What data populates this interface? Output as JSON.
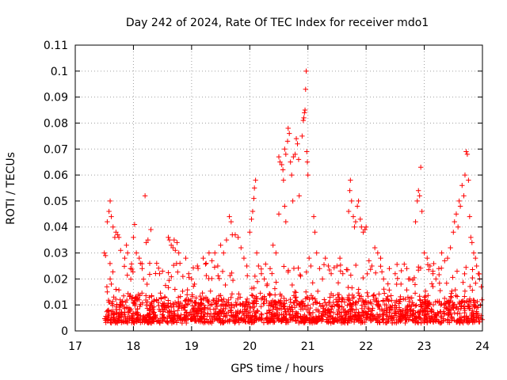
{
  "chart_data": {
    "type": "scatter",
    "title": "Day 242 of 2024, Rate Of TEC Index for receiver mdo1",
    "xlabel": "GPS time / hours",
    "ylabel": "ROTI / TECUs",
    "xlim": [
      17,
      24
    ],
    "ylim": [
      0,
      0.11
    ],
    "xticks": [
      17,
      18,
      19,
      20,
      21,
      22,
      23,
      24
    ],
    "xtick_labels": [
      "17",
      "18",
      "19",
      "20",
      "21",
      "22",
      "23",
      "24"
    ],
    "yticks": [
      0,
      0.01,
      0.02,
      0.03,
      0.04,
      0.05,
      0.06,
      0.07,
      0.08,
      0.09,
      0.1,
      0.11
    ],
    "ytick_labels": [
      "0",
      "0.01",
      "0.02",
      "0.03",
      "0.04",
      "0.05",
      "0.06",
      "0.07",
      "0.08",
      "0.09",
      "0.1",
      "0.11"
    ],
    "grid": true,
    "marker": "+",
    "series": [
      {
        "name": "ROTI",
        "color": "#ff0000",
        "points": [
          [
            17.5,
            0.03
          ],
          [
            17.52,
            0.029
          ],
          [
            17.55,
            0.042
          ],
          [
            17.58,
            0.046
          ],
          [
            17.6,
            0.05
          ],
          [
            17.62,
            0.044
          ],
          [
            17.65,
            0.04
          ],
          [
            17.68,
            0.036
          ],
          [
            17.7,
            0.038
          ],
          [
            17.73,
            0.037
          ],
          [
            17.75,
            0.036
          ],
          [
            17.78,
            0.031
          ],
          [
            17.6,
            0.02
          ],
          [
            17.62,
            0.018
          ],
          [
            17.55,
            0.015
          ],
          [
            17.7,
            0.016
          ],
          [
            17.85,
            0.028
          ],
          [
            17.88,
            0.033
          ],
          [
            17.9,
            0.03
          ],
          [
            17.95,
            0.024
          ],
          [
            18.0,
            0.036
          ],
          [
            18.02,
            0.041
          ],
          [
            18.05,
            0.03
          ],
          [
            18.1,
            0.028
          ],
          [
            18.12,
            0.026
          ],
          [
            18.15,
            0.024
          ],
          [
            18.2,
            0.052
          ],
          [
            18.22,
            0.034
          ],
          [
            18.25,
            0.035
          ],
          [
            18.28,
            0.026
          ],
          [
            18.3,
            0.039
          ],
          [
            18.4,
            0.026
          ],
          [
            18.45,
            0.022
          ],
          [
            18.5,
            0.023
          ],
          [
            18.6,
            0.036
          ],
          [
            18.62,
            0.035
          ],
          [
            18.65,
            0.033
          ],
          [
            18.68,
            0.032
          ],
          [
            18.7,
            0.035
          ],
          [
            18.72,
            0.031
          ],
          [
            18.75,
            0.034
          ],
          [
            18.78,
            0.03
          ],
          [
            18.8,
            0.026
          ],
          [
            18.85,
            0.021
          ],
          [
            18.9,
            0.028
          ],
          [
            18.95,
            0.022
          ],
          [
            19.0,
            0.02
          ],
          [
            19.05,
            0.018
          ],
          [
            19.1,
            0.025
          ],
          [
            19.2,
            0.028
          ],
          [
            19.25,
            0.026
          ],
          [
            19.3,
            0.03
          ],
          [
            19.35,
            0.027
          ],
          [
            19.4,
            0.03
          ],
          [
            19.45,
            0.025
          ],
          [
            19.5,
            0.033
          ],
          [
            19.55,
            0.03
          ],
          [
            19.6,
            0.035
          ],
          [
            19.65,
            0.044
          ],
          [
            19.68,
            0.042
          ],
          [
            19.7,
            0.037
          ],
          [
            19.75,
            0.037
          ],
          [
            19.8,
            0.036
          ],
          [
            19.85,
            0.032
          ],
          [
            19.9,
            0.028
          ],
          [
            19.95,
            0.025
          ],
          [
            20.0,
            0.038
          ],
          [
            20.03,
            0.043
          ],
          [
            20.05,
            0.046
          ],
          [
            20.07,
            0.051
          ],
          [
            20.08,
            0.055
          ],
          [
            20.1,
            0.058
          ],
          [
            20.12,
            0.03
          ],
          [
            20.15,
            0.025
          ],
          [
            20.2,
            0.022
          ],
          [
            20.25,
            0.02
          ],
          [
            20.3,
            0.018
          ],
          [
            20.35,
            0.024
          ],
          [
            20.4,
            0.033
          ],
          [
            20.45,
            0.03
          ],
          [
            20.5,
            0.045
          ],
          [
            20.5,
            0.067
          ],
          [
            20.52,
            0.065
          ],
          [
            20.55,
            0.064
          ],
          [
            20.57,
            0.062
          ],
          [
            20.58,
            0.058
          ],
          [
            20.6,
            0.07
          ],
          [
            20.62,
            0.068
          ],
          [
            20.65,
            0.073
          ],
          [
            20.66,
            0.078
          ],
          [
            20.68,
            0.076
          ],
          [
            20.7,
            0.065
          ],
          [
            20.72,
            0.06
          ],
          [
            20.74,
            0.05
          ],
          [
            20.75,
            0.067
          ],
          [
            20.78,
            0.068
          ],
          [
            20.8,
            0.074
          ],
          [
            20.82,
            0.072
          ],
          [
            20.84,
            0.066
          ],
          [
            20.85,
            0.052
          ],
          [
            20.6,
            0.048
          ],
          [
            20.62,
            0.042
          ],
          [
            20.9,
            0.075
          ],
          [
            20.92,
            0.081
          ],
          [
            20.93,
            0.082
          ],
          [
            20.94,
            0.084
          ],
          [
            20.95,
            0.085
          ],
          [
            20.96,
            0.093
          ],
          [
            20.97,
            0.1
          ],
          [
            20.98,
            0.069
          ],
          [
            20.99,
            0.065
          ],
          [
            21.0,
            0.06
          ],
          [
            21.02,
            0.028
          ],
          [
            21.05,
            0.025
          ],
          [
            21.1,
            0.044
          ],
          [
            21.12,
            0.038
          ],
          [
            21.15,
            0.03
          ],
          [
            21.2,
            0.024
          ],
          [
            21.25,
            0.02
          ],
          [
            21.3,
            0.028
          ],
          [
            21.35,
            0.025
          ],
          [
            21.4,
            0.022
          ],
          [
            21.5,
            0.025
          ],
          [
            21.55,
            0.028
          ],
          [
            21.6,
            0.022
          ],
          [
            21.7,
            0.046
          ],
          [
            21.72,
            0.054
          ],
          [
            21.73,
            0.058
          ],
          [
            21.75,
            0.05
          ],
          [
            21.78,
            0.044
          ],
          [
            21.8,
            0.04
          ],
          [
            21.82,
            0.042
          ],
          [
            21.85,
            0.048
          ],
          [
            21.87,
            0.05
          ],
          [
            21.9,
            0.043
          ],
          [
            21.92,
            0.04
          ],
          [
            21.95,
            0.038
          ],
          [
            21.98,
            0.039
          ],
          [
            22.0,
            0.04
          ],
          [
            22.05,
            0.027
          ],
          [
            22.1,
            0.025
          ],
          [
            22.15,
            0.032
          ],
          [
            22.2,
            0.03
          ],
          [
            22.25,
            0.028
          ],
          [
            22.3,
            0.02
          ],
          [
            22.4,
            0.024
          ],
          [
            22.5,
            0.022
          ],
          [
            22.6,
            0.018
          ],
          [
            22.7,
            0.024
          ],
          [
            22.75,
            0.02
          ],
          [
            22.85,
            0.042
          ],
          [
            22.88,
            0.05
          ],
          [
            22.9,
            0.054
          ],
          [
            22.92,
            0.052
          ],
          [
            22.94,
            0.063
          ],
          [
            22.96,
            0.046
          ],
          [
            23.0,
            0.03
          ],
          [
            23.05,
            0.028
          ],
          [
            23.1,
            0.025
          ],
          [
            23.15,
            0.022
          ],
          [
            23.2,
            0.02
          ],
          [
            23.25,
            0.024
          ],
          [
            23.3,
            0.03
          ],
          [
            23.35,
            0.027
          ],
          [
            23.4,
            0.028
          ],
          [
            23.45,
            0.032
          ],
          [
            23.5,
            0.038
          ],
          [
            23.52,
            0.042
          ],
          [
            23.55,
            0.045
          ],
          [
            23.58,
            0.04
          ],
          [
            23.6,
            0.05
          ],
          [
            23.62,
            0.048
          ],
          [
            23.65,
            0.056
          ],
          [
            23.68,
            0.052
          ],
          [
            23.7,
            0.06
          ],
          [
            23.72,
            0.069
          ],
          [
            23.74,
            0.068
          ],
          [
            23.76,
            0.058
          ],
          [
            23.78,
            0.044
          ],
          [
            23.8,
            0.036
          ],
          [
            23.82,
            0.034
          ],
          [
            23.85,
            0.03
          ],
          [
            23.88,
            0.028
          ],
          [
            23.9,
            0.025
          ],
          [
            23.93,
            0.022
          ],
          [
            23.95,
            0.02
          ],
          [
            23.98,
            0.017
          ]
        ],
        "band": {
          "x_start": 17.5,
          "x_end": 24.0,
          "count": 1800,
          "base_min": 0.003,
          "base_typical": 0.009,
          "base_spread": 0.01,
          "upper_tail": 0.026
        }
      }
    ]
  }
}
